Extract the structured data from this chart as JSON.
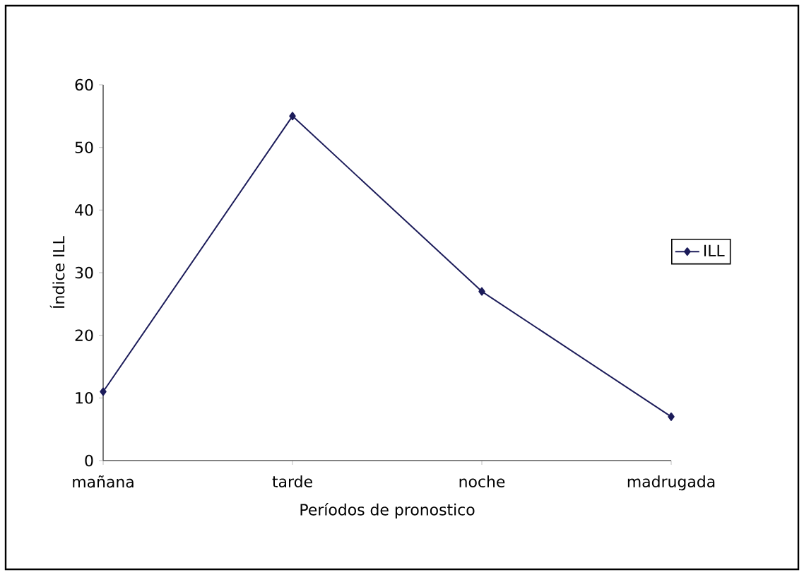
{
  "chart_data": {
    "type": "line",
    "xlabel": "Períodos de pronostico",
    "ylabel": "Índice ILL",
    "categories": [
      "mañana",
      "tarde",
      "noche",
      "madrugada"
    ],
    "series": [
      {
        "name": "ILL",
        "color": "#1c1c5a",
        "values": [
          11,
          55,
          27,
          7
        ]
      }
    ],
    "ylim": [
      0,
      60
    ],
    "yticks": [
      0,
      10,
      20,
      30,
      40,
      50,
      60
    ],
    "marker": "diamond",
    "line_style": "solid",
    "legend": "right",
    "grid": false
  }
}
